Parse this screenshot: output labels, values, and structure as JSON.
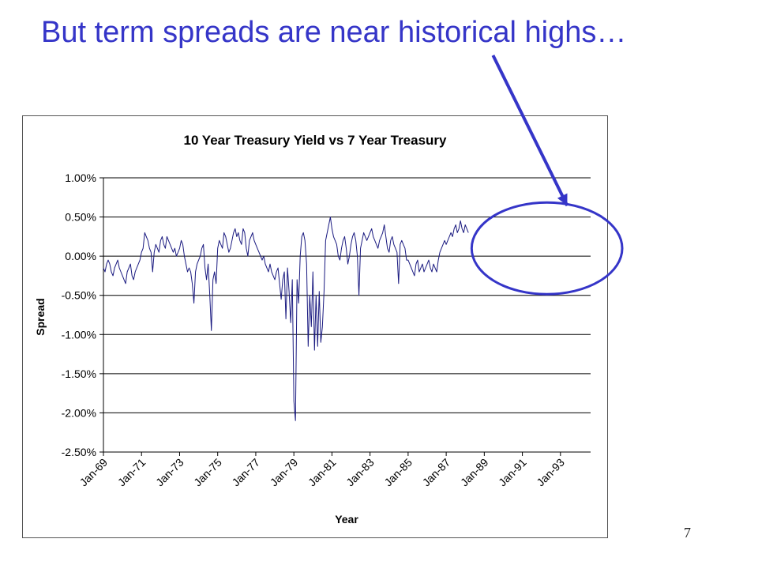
{
  "slide": {
    "title": "But term spreads are near historical highs…",
    "page_number": "7",
    "accent_color": "#3535c8"
  },
  "chart_data": {
    "type": "line",
    "title": "10 Year Treasury Yield vs 7 Year Treasury",
    "xlabel": "Year",
    "ylabel": "Spread",
    "ylim": [
      -2.5,
      1.0
    ],
    "yticks": [
      1.0,
      0.5,
      0.0,
      -0.5,
      -1.0,
      -1.5,
      -2.0,
      -2.5
    ],
    "ytick_labels": [
      "1.00%",
      "0.50%",
      "0.00%",
      "-0.50%",
      "-1.00%",
      "-1.50%",
      "-2.00%",
      "-2.50%"
    ],
    "xrange": [
      "1969-01",
      "1994-08"
    ],
    "x_tick_labels": [
      "Jan-69",
      "Jan-71",
      "Jan-73",
      "Jan-75",
      "Jan-77",
      "Jan-79",
      "Jan-81",
      "Jan-83",
      "Jan-85",
      "Jan-87",
      "Jan-89",
      "Jan-91",
      "Jan-93"
    ],
    "grid": "horizontal",
    "legend": "none",
    "line_color": "#1a1a80",
    "series": [
      {
        "x_start": "1969-01",
        "frequency": "monthly",
        "values": [
          -0.15,
          -0.2,
          -0.1,
          -0.05,
          -0.1,
          -0.2,
          -0.25,
          -0.15,
          -0.1,
          -0.05,
          -0.15,
          -0.2,
          -0.25,
          -0.3,
          -0.35,
          -0.2,
          -0.15,
          -0.1,
          -0.25,
          -0.3,
          -0.2,
          -0.15,
          -0.1,
          -0.05,
          0.05,
          0.1,
          0.3,
          0.25,
          0.2,
          0.1,
          0.05,
          -0.2,
          0.05,
          0.15,
          0.1,
          0.05,
          0.2,
          0.25,
          0.15,
          0.1,
          0.25,
          0.2,
          0.15,
          0.1,
          0.05,
          0.1,
          0.0,
          0.05,
          0.1,
          0.2,
          0.15,
          0.0,
          -0.1,
          -0.2,
          -0.15,
          -0.2,
          -0.35,
          -0.6,
          -0.2,
          -0.1,
          -0.05,
          0.0,
          0.1,
          0.15,
          -0.15,
          -0.3,
          -0.1,
          -0.5,
          -0.95,
          -0.3,
          -0.2,
          -0.35,
          0.1,
          0.2,
          0.15,
          0.1,
          0.3,
          0.25,
          0.15,
          0.05,
          0.1,
          0.2,
          0.3,
          0.35,
          0.25,
          0.3,
          0.2,
          0.15,
          0.35,
          0.3,
          0.1,
          0.0,
          0.2,
          0.25,
          0.3,
          0.2,
          0.15,
          0.1,
          0.05,
          0.0,
          -0.05,
          0.0,
          -0.1,
          -0.15,
          -0.2,
          -0.1,
          -0.2,
          -0.25,
          -0.3,
          -0.2,
          -0.15,
          -0.35,
          -0.55,
          -0.3,
          -0.2,
          -0.8,
          -0.15,
          -0.45,
          -0.85,
          -0.3,
          -1.85,
          -2.1,
          -0.3,
          -0.6,
          0.0,
          0.25,
          0.3,
          0.2,
          -0.1,
          -1.15,
          -0.5,
          -0.9,
          -0.2,
          -1.2,
          -0.5,
          -1.15,
          -0.45,
          -1.1,
          -0.9,
          -0.45,
          0.2,
          0.3,
          0.4,
          0.5,
          0.35,
          0.25,
          0.2,
          0.15,
          0.0,
          -0.05,
          0.1,
          0.2,
          0.25,
          0.1,
          -0.1,
          0.0,
          0.15,
          0.25,
          0.3,
          0.2,
          0.0,
          -0.5,
          0.1,
          0.2,
          0.3,
          0.25,
          0.2,
          0.25,
          0.3,
          0.35,
          0.25,
          0.2,
          0.15,
          0.1,
          0.2,
          0.25,
          0.3,
          0.4,
          0.25,
          0.1,
          0.05,
          0.2,
          0.25,
          0.15,
          0.1,
          0.05,
          -0.35,
          0.15,
          0.2,
          0.15,
          0.1,
          -0.05,
          -0.05,
          -0.1,
          -0.15,
          -0.2,
          -0.25,
          -0.1,
          -0.05,
          -0.2,
          -0.15,
          -0.1,
          -0.2,
          -0.15,
          -0.1,
          -0.05,
          -0.15,
          -0.2,
          -0.1,
          -0.15,
          -0.2,
          -0.05,
          0.05,
          0.1,
          0.15,
          0.2,
          0.15,
          0.2,
          0.25,
          0.3,
          0.25,
          0.35,
          0.4,
          0.3,
          0.35,
          0.45,
          0.35,
          0.3,
          0.4,
          0.35,
          0.3
        ]
      }
    ],
    "annotation": {
      "shape": "ellipse",
      "color": "#3535c8",
      "x_from": "1989-01",
      "x_to": "1994-08"
    }
  }
}
